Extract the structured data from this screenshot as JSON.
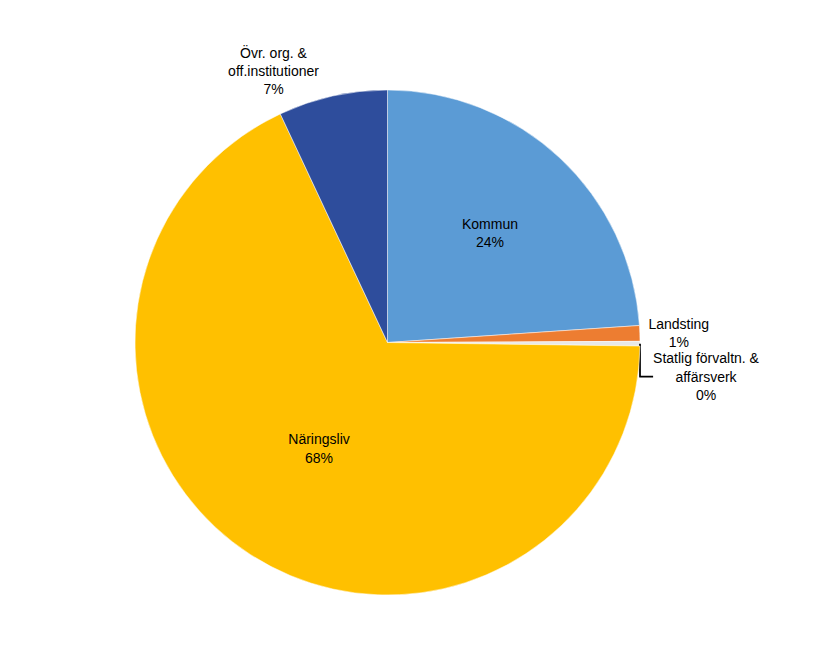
{
  "chart_data": {
    "type": "pie",
    "categories": [
      "Kommun",
      "Landsting",
      "Statlig förvaltn. &\naffärsverk",
      "Näringsliv",
      "Övr. org. &\noff.institutioner"
    ],
    "values": [
      24,
      1,
      0.3,
      68,
      7
    ],
    "value_labels": [
      "24%",
      "1%",
      "0%",
      "68%",
      "7%"
    ],
    "colors": [
      "#5B9BD5",
      "#ED7D31",
      "#E8E8E8",
      "#FFC000",
      "#2E4D9C"
    ]
  }
}
